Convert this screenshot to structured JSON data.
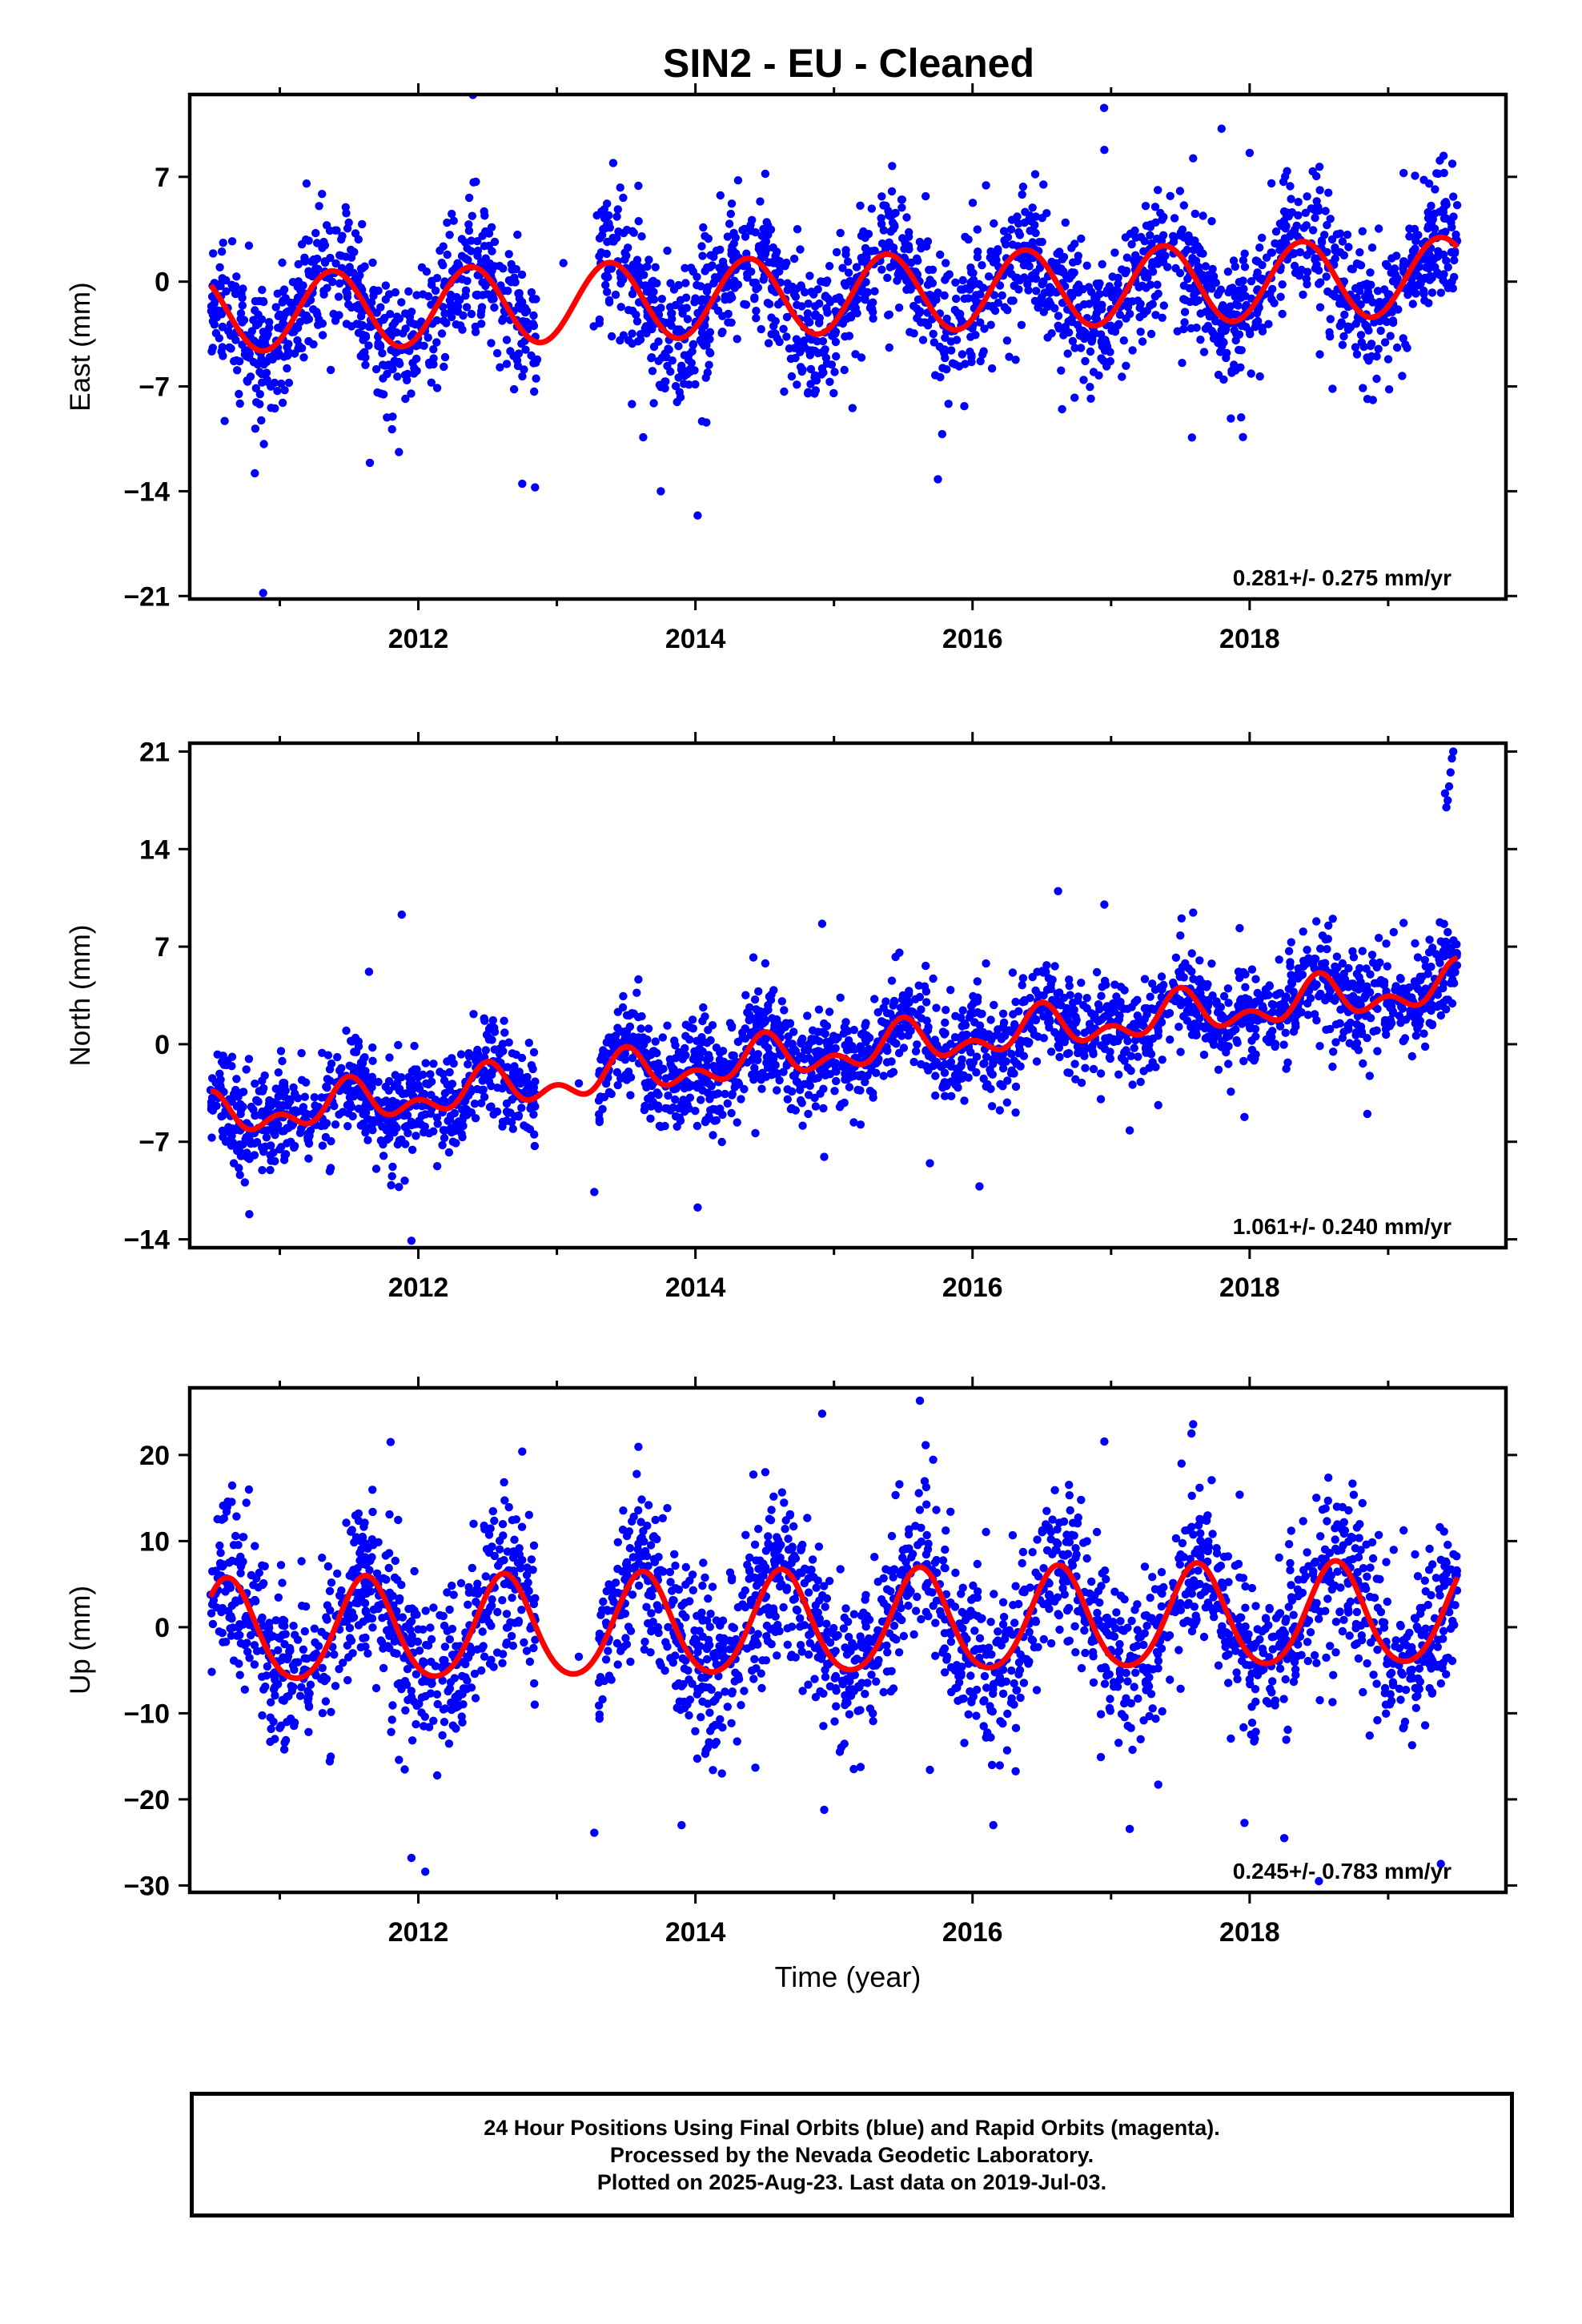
{
  "title": "SIN2  - EU - Cleaned",
  "colors": {
    "data": "#0000ff",
    "model": "#ff0000",
    "axis": "#000000"
  },
  "caption": {
    "line1": "24 Hour Positions Using Final Orbits (blue) and Rapid Orbits (magenta).",
    "line2": "Processed by the Nevada Geodetic Laboratory.",
    "line3": "Plotted on 2025-Aug-23. Last data on 2019-Jul-03."
  },
  "chart_data": [
    {
      "type": "scatter",
      "ylabel": "East (mm)",
      "xlabel": "",
      "xlim": [
        2010.35,
        2019.85
      ],
      "ylim": [
        -21.2,
        12.5
      ],
      "xticks": [
        2012,
        2014,
        2016,
        2018
      ],
      "yticks": [
        -21,
        -14,
        -7,
        0,
        7
      ],
      "rate_label": "0.281+/- 0.275 mm/yr",
      "data_span": [
        2010.5,
        2019.5
      ],
      "gaps": [
        [
          2012.85,
          2013.3
        ]
      ],
      "model": {
        "offset": -0.9,
        "rate": 0.281,
        "t0": 2014.9,
        "amp_annual": 2.6,
        "amp_semi": 0.0,
        "peak_phase": 0.38,
        "jumps": []
      },
      "scatter_sd": 2.2,
      "outliers": [
        [
          2016.95,
          11.6
        ],
        [
          2010.88,
          -20.8
        ],
        [
          2010.82,
          -12.8
        ],
        [
          2013.75,
          -14.0
        ],
        [
          2015.75,
          -13.2
        ],
        [
          2012.75,
          -13.5
        ],
        [
          2018.0,
          8.6
        ],
        [
          2011.65,
          -12.1
        ],
        [
          2019.4,
          8.4
        ]
      ]
    },
    {
      "type": "scatter",
      "ylabel": "North (mm)",
      "xlabel": "",
      "xlim": [
        2010.35,
        2019.85
      ],
      "ylim": [
        -14.6,
        21.6
      ],
      "xticks": [
        2012,
        2014,
        2016,
        2018
      ],
      "yticks": [
        -14,
        -7,
        0,
        7,
        14,
        21
      ],
      "rate_label": "1.061+/- 0.240 mm/yr",
      "data_span": [
        2010.5,
        2019.5
      ],
      "gaps": [
        [
          2012.85,
          2013.3
        ]
      ],
      "model": {
        "offset": -0.7,
        "rate": 1.061,
        "t0": 2014.9,
        "amp_annual": 1.1,
        "amp_semi": 0.9,
        "peak_phase": 0.5,
        "jumps": []
      },
      "scatter_sd": 1.7,
      "outliers": [
        [
          2011.88,
          9.3
        ],
        [
          2011.95,
          -14.1
        ],
        [
          2010.78,
          -12.2
        ],
        [
          2016.05,
          -10.2
        ],
        [
          2017.5,
          7.8
        ],
        [
          2018.6,
          9.0
        ],
        [
          2019.42,
          17.0
        ],
        [
          2019.44,
          18.5
        ],
        [
          2019.45,
          19.5
        ],
        [
          2019.46,
          20.5
        ],
        [
          2019.47,
          21.0
        ],
        [
          2019.43,
          17.5
        ],
        [
          2019.41,
          18.0
        ],
        [
          2018.85,
          -5.0
        ]
      ]
    },
    {
      "type": "scatter",
      "ylabel": "Up (mm)",
      "xlabel": "Time (year)",
      "xlim": [
        2010.35,
        2019.85
      ],
      "ylim": [
        -30.8,
        27.8
      ],
      "xticks": [
        2012,
        2014,
        2016,
        2018
      ],
      "yticks": [
        -30,
        -20,
        -10,
        0,
        10,
        20
      ],
      "rate_label": "0.245+/- 0.783 mm/yr",
      "data_span": [
        2010.5,
        2019.5
      ],
      "gaps": [
        [
          2012.85,
          2013.3
        ]
      ],
      "model": {
        "offset": 0.3,
        "rate": 0.245,
        "t0": 2014.9,
        "amp_annual": 5.9,
        "amp_semi": 0.6,
        "peak_phase": 0.62,
        "jumps": []
      },
      "scatter_sd": 4.6,
      "outliers": [
        [
          2015.62,
          26.3
        ],
        [
          2011.95,
          -26.8
        ],
        [
          2012.05,
          -28.4
        ],
        [
          2018.5,
          -29.5
        ],
        [
          2019.38,
          -27.5
        ],
        [
          2011.8,
          21.5
        ],
        [
          2017.58,
          22.5
        ],
        [
          2012.75,
          20.4
        ],
        [
          2018.25,
          -24.5
        ],
        [
          2013.9,
          -23.0
        ],
        [
          2016.15,
          -23.0
        ]
      ]
    }
  ]
}
